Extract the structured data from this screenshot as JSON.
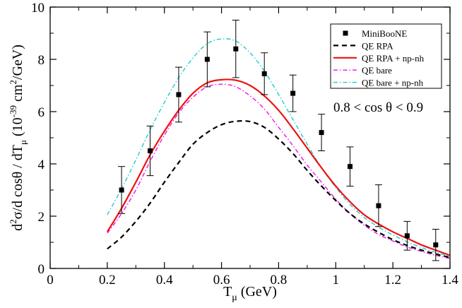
{
  "chart_data": {
    "type": "line",
    "title": "",
    "xlabel": {
      "main": "T",
      "sub": "μ",
      "tail": " (GeV)"
    },
    "ylabel": {
      "p1": "d",
      "p1sup": "2",
      "p2": "σ/d cosθ / dT",
      "p2sub": "μ",
      "p3": " (10",
      "p3sup": "-39",
      "p4": " cm",
      "p4sup": "2",
      "p5": "/GeV)"
    },
    "xlim": [
      0,
      1.4
    ],
    "ylim": [
      0,
      10
    ],
    "xticks": [
      "0",
      "0.2",
      "0.4",
      "0.6",
      "0.8",
      "1",
      "1.2",
      "1.4"
    ],
    "yticks": [
      "0",
      "2",
      "4",
      "6",
      "8",
      "10"
    ],
    "grid": false,
    "legend_position": "top-right",
    "annotation": "0.8 < cos θ < 0.9",
    "points": {
      "name": "MiniBooNE",
      "color": "#000000",
      "x": [
        0.25,
        0.35,
        0.45,
        0.55,
        0.65,
        0.75,
        0.85,
        0.95,
        1.05,
        1.15,
        1.25,
        1.35
      ],
      "y": [
        3.0,
        4.5,
        6.65,
        8.0,
        8.4,
        7.45,
        6.7,
        5.2,
        3.9,
        2.4,
        1.25,
        0.9
      ],
      "err": [
        0.9,
        0.95,
        1.05,
        1.05,
        1.1,
        0.8,
        0.7,
        0.7,
        0.75,
        0.8,
        0.55,
        0.6
      ]
    },
    "series": [
      {
        "name": "QE RPA",
        "color": "#000000",
        "dash": "7,5",
        "width": 2.2,
        "x": [
          0.2,
          0.25,
          0.3,
          0.35,
          0.4,
          0.45,
          0.5,
          0.55,
          0.6,
          0.65,
          0.7,
          0.75,
          0.8,
          0.85,
          0.9,
          0.95,
          1.0,
          1.05,
          1.1,
          1.15,
          1.2,
          1.25,
          1.3,
          1.35,
          1.4
        ],
        "y": [
          0.75,
          1.2,
          1.8,
          2.5,
          3.3,
          4.05,
          4.75,
          5.2,
          5.5,
          5.63,
          5.62,
          5.4,
          4.95,
          4.4,
          3.75,
          3.15,
          2.6,
          2.1,
          1.7,
          1.38,
          1.1,
          0.88,
          0.7,
          0.55,
          0.42
        ]
      },
      {
        "name": "QE RPA + np-nh",
        "color": "#ee1111",
        "dash": "",
        "width": 2.2,
        "x": [
          0.2,
          0.25,
          0.3,
          0.35,
          0.4,
          0.45,
          0.5,
          0.55,
          0.6,
          0.65,
          0.7,
          0.75,
          0.8,
          0.85,
          0.9,
          0.95,
          1.0,
          1.05,
          1.1,
          1.15,
          1.2,
          1.25,
          1.3,
          1.35,
          1.4
        ],
        "y": [
          1.4,
          2.3,
          3.3,
          4.35,
          5.25,
          6.05,
          6.7,
          7.1,
          7.22,
          7.2,
          7.0,
          6.6,
          6.05,
          5.35,
          4.6,
          3.85,
          3.15,
          2.55,
          2.05,
          1.7,
          1.4,
          1.15,
          0.9,
          0.7,
          0.5
        ]
      },
      {
        "name": "QE bare",
        "color": "#ee11ee",
        "dash": "6,3,1.5,3",
        "width": 1.4,
        "x": [
          0.2,
          0.25,
          0.3,
          0.35,
          0.4,
          0.45,
          0.5,
          0.55,
          0.6,
          0.65,
          0.7,
          0.75,
          0.8,
          0.85,
          0.9,
          0.95,
          1.0,
          1.05,
          1.1,
          1.15,
          1.2,
          1.25,
          1.3,
          1.35,
          1.4
        ],
        "y": [
          1.35,
          2.1,
          3.0,
          4.1,
          5.1,
          5.95,
          6.55,
          6.95,
          7.05,
          6.95,
          6.6,
          6.1,
          5.4,
          4.7,
          3.95,
          3.3,
          2.65,
          2.1,
          1.65,
          1.3,
          1.05,
          0.82,
          0.65,
          0.5,
          0.38
        ]
      },
      {
        "name": "QE bare + np-nh",
        "color": "#22cccc",
        "dash": "6,3,1.5,3",
        "width": 1.4,
        "x": [
          0.2,
          0.25,
          0.3,
          0.35,
          0.4,
          0.45,
          0.5,
          0.55,
          0.6,
          0.65,
          0.7,
          0.75,
          0.8,
          0.85,
          0.9,
          0.95,
          1.0,
          1.05,
          1.1,
          1.15,
          1.2,
          1.25,
          1.3,
          1.35,
          1.4
        ],
        "y": [
          2.05,
          3.05,
          4.15,
          5.3,
          6.35,
          7.3,
          8.05,
          8.6,
          8.78,
          8.7,
          8.25,
          7.55,
          6.65,
          5.7,
          4.75,
          3.85,
          3.1,
          2.45,
          1.95,
          1.58,
          1.28,
          1.02,
          0.8,
          0.62,
          0.46
        ]
      }
    ]
  }
}
